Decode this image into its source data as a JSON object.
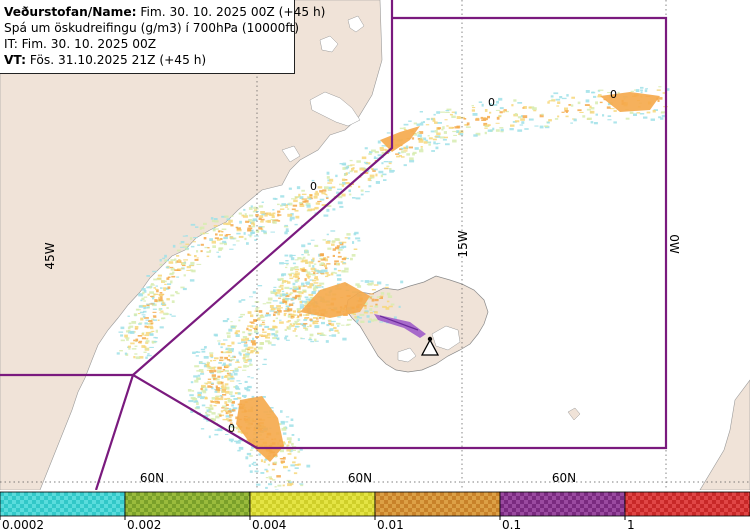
{
  "info": {
    "line1_label": "Veðurstofan/Name:",
    "line1_value": "Fim. 30. 10. 2025 00Z (+45 h)",
    "line2": "Spá um öskudreifingu (g/m3) í 700hPa (10000ft)",
    "line3": "IT: Fim. 30. 10. 2025 00Z",
    "line4_label": "VT:",
    "line4_value": "Fös. 31.10.2025 21Z (+45 h)"
  },
  "graticule": {
    "lon_labels": [
      "45W",
      "15W",
      "0W"
    ],
    "lat_labels": [
      "60N",
      "60N",
      "60N"
    ]
  },
  "contour_labels": [
    "0",
    "0",
    "0",
    "0"
  ],
  "colors": {
    "land": "#f0e3d8",
    "sea": "#ffffff",
    "boundary": "#7a1a7e",
    "ash_main": "#f5a94a",
    "ash_light": "#f7d77a",
    "ash_faint": "#d7ecb0",
    "ash_cyan": "#9fe0e8",
    "plume_source": "#9a55c8"
  },
  "volcano_icon": "volcano-triangle-icon",
  "legend": {
    "swatches": [
      {
        "color": "#32c8c8",
        "alt": "#5adcdc"
      },
      {
        "color": "#7aa02a",
        "alt": "#9abb3c"
      },
      {
        "color": "#cfcf2a",
        "alt": "#e4e444"
      },
      {
        "color": "#c8822a",
        "alt": "#dca046"
      },
      {
        "color": "#7a2a80",
        "alt": "#9a4aa0"
      },
      {
        "color": "#c82828",
        "alt": "#e04646"
      }
    ],
    "ticks": [
      "0.0002",
      "0.002",
      "0.004",
      "0.01",
      "0.1",
      "1"
    ]
  }
}
